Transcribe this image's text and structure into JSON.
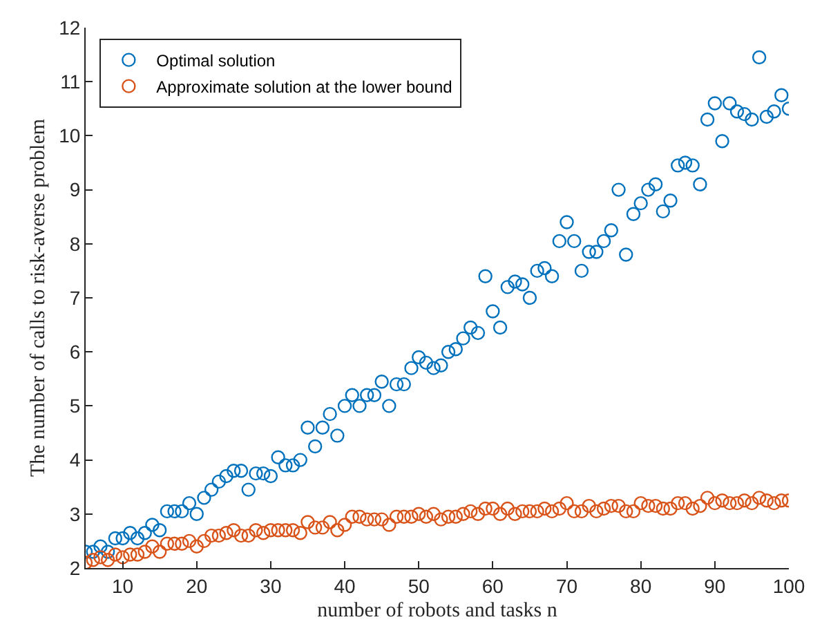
{
  "chart_data": {
    "type": "scatter",
    "xlabel": "number of robots and tasks n",
    "ylabel": "The number of calls to risk-averse problem",
    "x": [
      5,
      6,
      7,
      8,
      9,
      10,
      11,
      12,
      13,
      14,
      15,
      16,
      17,
      18,
      19,
      20,
      21,
      22,
      23,
      24,
      25,
      26,
      27,
      28,
      29,
      30,
      31,
      32,
      33,
      34,
      35,
      36,
      37,
      38,
      39,
      40,
      41,
      42,
      43,
      44,
      45,
      46,
      47,
      48,
      49,
      50,
      51,
      52,
      53,
      54,
      55,
      56,
      57,
      58,
      59,
      60,
      61,
      62,
      63,
      64,
      65,
      66,
      67,
      68,
      69,
      70,
      71,
      72,
      73,
      74,
      75,
      76,
      77,
      78,
      79,
      80,
      81,
      82,
      83,
      84,
      85,
      86,
      87,
      88,
      89,
      90,
      91,
      92,
      93,
      94,
      95,
      96,
      97,
      98,
      99,
      100
    ],
    "series": [
      {
        "name": "Optimal solution",
        "color": "#0072bd",
        "values": [
          2.3,
          2.3,
          2.4,
          2.3,
          2.55,
          2.55,
          2.65,
          2.55,
          2.65,
          2.8,
          2.7,
          3.05,
          3.05,
          3.05,
          3.2,
          3.0,
          3.3,
          3.45,
          3.6,
          3.7,
          3.8,
          3.8,
          3.45,
          3.75,
          3.75,
          3.7,
          4.05,
          3.9,
          3.9,
          4.0,
          4.6,
          4.25,
          4.6,
          4.85,
          4.45,
          5.0,
          5.2,
          5.0,
          5.2,
          5.2,
          5.45,
          5.0,
          5.4,
          5.4,
          5.7,
          5.9,
          5.8,
          5.7,
          5.75,
          6.0,
          6.05,
          6.25,
          6.45,
          6.35,
          7.4,
          6.75,
          6.45,
          7.2,
          7.3,
          7.25,
          7.0,
          7.5,
          7.55,
          7.4,
          8.05,
          8.4,
          8.05,
          7.5,
          7.85,
          7.85,
          8.05,
          8.25,
          9.0,
          7.8,
          8.55,
          8.75,
          9.0,
          9.1,
          8.6,
          8.8,
          9.45,
          9.5,
          9.45,
          9.1,
          10.3,
          10.6,
          9.9,
          10.6,
          10.45,
          10.4,
          10.3,
          11.45,
          10.35,
          10.45,
          10.75,
          10.5
        ]
      },
      {
        "name": "Approximate solution at the lower bound",
        "color": "#d95319",
        "values": [
          2.1,
          2.15,
          2.2,
          2.15,
          2.25,
          2.2,
          2.25,
          2.25,
          2.3,
          2.4,
          2.3,
          2.45,
          2.45,
          2.45,
          2.5,
          2.4,
          2.5,
          2.6,
          2.6,
          2.65,
          2.7,
          2.6,
          2.6,
          2.7,
          2.65,
          2.7,
          2.7,
          2.7,
          2.7,
          2.65,
          2.85,
          2.75,
          2.75,
          2.85,
          2.7,
          2.8,
          2.95,
          2.95,
          2.9,
          2.9,
          2.9,
          2.8,
          2.95,
          2.95,
          2.95,
          3.0,
          2.95,
          3.0,
          2.9,
          2.95,
          2.95,
          3.0,
          3.05,
          3.0,
          3.1,
          3.1,
          3.0,
          3.1,
          3.0,
          3.05,
          3.05,
          3.05,
          3.1,
          3.05,
          3.1,
          3.2,
          3.05,
          3.05,
          3.15,
          3.05,
          3.1,
          3.15,
          3.15,
          3.05,
          3.05,
          3.2,
          3.15,
          3.15,
          3.1,
          3.1,
          3.2,
          3.2,
          3.1,
          3.15,
          3.3,
          3.2,
          3.25,
          3.2,
          3.2,
          3.25,
          3.2,
          3.3,
          3.25,
          3.2,
          3.25,
          3.25
        ]
      }
    ],
    "xlim": [
      5,
      100
    ],
    "xticks": [
      10,
      20,
      30,
      40,
      50,
      60,
      70,
      80,
      90,
      100
    ],
    "ylim": [
      2,
      12
    ],
    "yticks": [
      2,
      3,
      4,
      5,
      6,
      7,
      8,
      9,
      10,
      11,
      12
    ],
    "legend": "top left",
    "marker": "circle"
  }
}
